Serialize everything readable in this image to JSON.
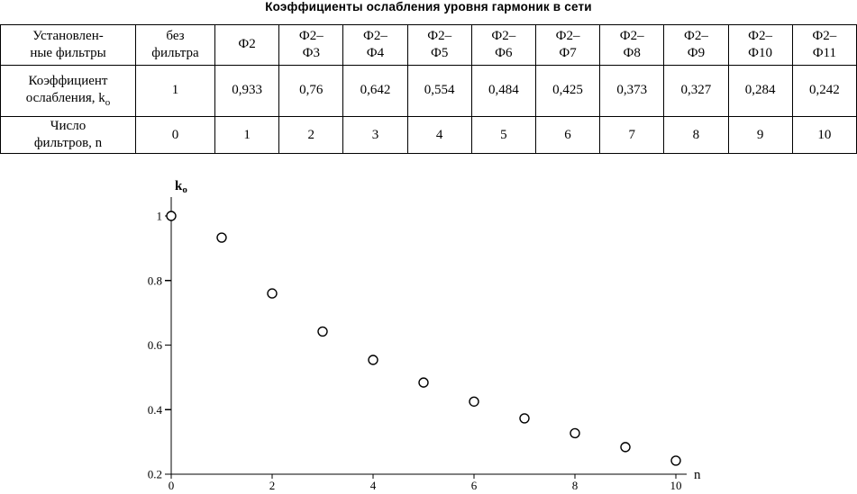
{
  "page": {
    "title": "Коэффициенты ослабления уровня гармоник в сети"
  },
  "table": {
    "col_headers": [
      "Установлен-\nные фильтры",
      "без\nфильтра",
      "Ф2",
      "Ф2–\nФ3",
      "Ф2–\nФ4",
      "Ф2–\nФ5",
      "Ф2–\nФ6",
      "Ф2–\nФ7",
      "Ф2–\nФ8",
      "Ф2–\nФ9",
      "Ф2–\nФ10",
      "Ф2–\nФ11"
    ],
    "rows": [
      {
        "label": "Коэффициент\nослабления, k",
        "label_sub": "о",
        "values": [
          "1",
          "0,933",
          "0,76",
          "0,642",
          "0,554",
          "0,484",
          "0,425",
          "0,373",
          "0,327",
          "0,284",
          "0,242"
        ]
      },
      {
        "label": "Число\nфильтров, n",
        "label_sub": "",
        "values": [
          "0",
          "1",
          "2",
          "3",
          "4",
          "5",
          "6",
          "7",
          "8",
          "9",
          "10"
        ]
      }
    ]
  },
  "chart_data": {
    "type": "scatter",
    "title": "",
    "xlabel": "n",
    "ylabel": "k",
    "ylabel_sub": "о",
    "x": [
      0,
      1,
      2,
      3,
      4,
      5,
      6,
      7,
      8,
      9,
      10
    ],
    "y": [
      1,
      0.933,
      0.76,
      0.642,
      0.554,
      0.484,
      0.425,
      0.373,
      0.327,
      0.284,
      0.242
    ],
    "xlim": [
      0,
      10
    ],
    "ylim": [
      0.2,
      1
    ],
    "x_ticks": [
      0,
      2,
      4,
      6,
      8,
      10
    ],
    "x_tick_labels": [
      "0",
      "2",
      "4",
      "6",
      "8",
      "10"
    ],
    "y_ticks": [
      0.2,
      0.4,
      0.6,
      0.8,
      1
    ],
    "y_tick_labels": [
      "0.2",
      "0.4",
      "0.6",
      "0.8",
      "1"
    ],
    "marker": "open-circle",
    "grid": false,
    "legend": null
  }
}
